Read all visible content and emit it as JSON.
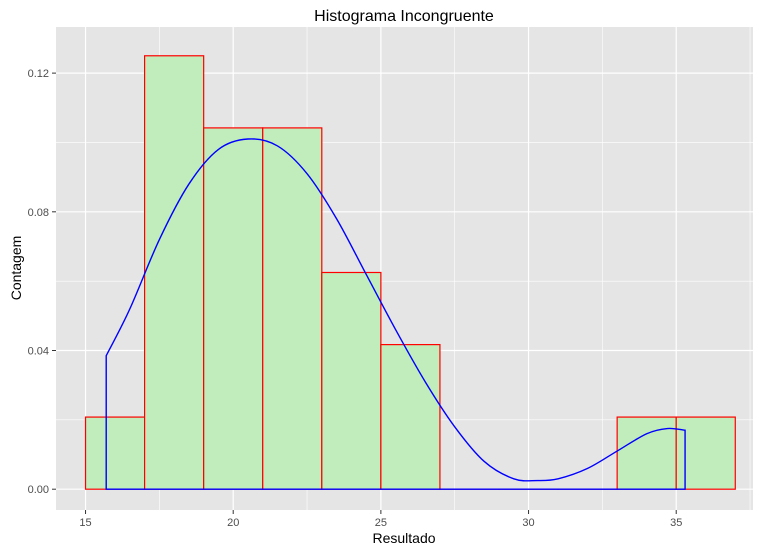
{
  "chart_data": {
    "type": "bar",
    "title": "Histograma Incongruente",
    "xlabel": "Resultado",
    "ylabel": "Contagem",
    "xlim": [
      14.0,
      37.6
    ],
    "ylim": [
      -0.006,
      0.1333
    ],
    "x_ticks": [
      15,
      20,
      25,
      30,
      35
    ],
    "x_tick_labels": [
      "15",
      "20",
      "25",
      "30",
      "35"
    ],
    "y_ticks": [
      0.0,
      0.04,
      0.08,
      0.12
    ],
    "y_tick_labels": [
      "0.00",
      "0.04",
      "0.08",
      "0.12"
    ],
    "grid": true,
    "bins": [
      {
        "x0": 15,
        "x1": 17,
        "value": 0.0208
      },
      {
        "x0": 17,
        "x1": 19,
        "value": 0.125
      },
      {
        "x0": 19,
        "x1": 21,
        "value": 0.1042
      },
      {
        "x0": 21,
        "x1": 23,
        "value": 0.1042
      },
      {
        "x0": 23,
        "x1": 25,
        "value": 0.0625
      },
      {
        "x0": 25,
        "x1": 27,
        "value": 0.0417
      },
      {
        "x0": 27,
        "x1": 29,
        "value": 0
      },
      {
        "x0": 29,
        "x1": 31,
        "value": 0
      },
      {
        "x0": 31,
        "x1": 33,
        "value": 0
      },
      {
        "x0": 33,
        "x1": 35,
        "value": 0.0208
      },
      {
        "x0": 35,
        "x1": 37,
        "value": 0.0208
      }
    ],
    "density": {
      "x": [
        15.7,
        16.5,
        17.5,
        18.5,
        19.5,
        20.5,
        21.5,
        22.5,
        23.5,
        24.5,
        25.5,
        26.5,
        27.5,
        28.5,
        29.5,
        30.3,
        31.0,
        32.0,
        33.0,
        34.0,
        34.7,
        35.3
      ],
      "y": [
        0.0385,
        0.052,
        0.072,
        0.088,
        0.098,
        0.101,
        0.099,
        0.091,
        0.078,
        0.062,
        0.046,
        0.031,
        0.018,
        0.008,
        0.003,
        0.0025,
        0.003,
        0.006,
        0.011,
        0.016,
        0.0175,
        0.017
      ]
    },
    "colors": {
      "panel": "#e5e5e5",
      "grid": "#ffffff",
      "bar_fill": "#c1ecbb",
      "bar_stroke": "#ff0000",
      "density": "#0000ff"
    }
  }
}
